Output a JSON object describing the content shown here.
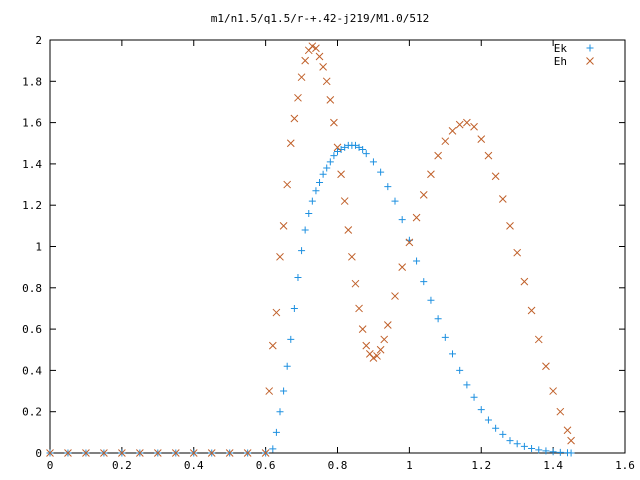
{
  "chart_data": {
    "type": "scatter",
    "title": "m1/n1.5/q1.5/r-+.42-j219/M1.0/512",
    "xlabel": "",
    "ylabel": "",
    "xlim": [
      0,
      1.6
    ],
    "ylim": [
      0,
      2
    ],
    "xticks": [
      "0",
      "0.2",
      "0.4",
      "0.6",
      "0.8",
      "1",
      "1.2",
      "1.4",
      "1.6"
    ],
    "yticks": [
      "0",
      "0.2",
      "0.4",
      "0.6",
      "0.8",
      "1",
      "1.2",
      "1.4",
      "1.6",
      "1.8",
      "2"
    ],
    "grid": false,
    "legend_position": "top-right",
    "series": [
      {
        "name": "Ek",
        "marker": "plus",
        "color": "#1e90e0",
        "points": [
          [
            0,
            0
          ],
          [
            0.05,
            0
          ],
          [
            0.1,
            0
          ],
          [
            0.15,
            0
          ],
          [
            0.2,
            0
          ],
          [
            0.25,
            0
          ],
          [
            0.3,
            0
          ],
          [
            0.35,
            0
          ],
          [
            0.4,
            0
          ],
          [
            0.45,
            0
          ],
          [
            0.5,
            0
          ],
          [
            0.55,
            0
          ],
          [
            0.6,
            0
          ],
          [
            0.62,
            0.02
          ],
          [
            0.63,
            0.1
          ],
          [
            0.64,
            0.2
          ],
          [
            0.65,
            0.3
          ],
          [
            0.66,
            0.42
          ],
          [
            0.67,
            0.55
          ],
          [
            0.68,
            0.7
          ],
          [
            0.69,
            0.85
          ],
          [
            0.7,
            0.98
          ],
          [
            0.71,
            1.08
          ],
          [
            0.72,
            1.16
          ],
          [
            0.73,
            1.22
          ],
          [
            0.74,
            1.27
          ],
          [
            0.75,
            1.31
          ],
          [
            0.76,
            1.35
          ],
          [
            0.77,
            1.38
          ],
          [
            0.78,
            1.41
          ],
          [
            0.79,
            1.44
          ],
          [
            0.8,
            1.46
          ],
          [
            0.81,
            1.47
          ],
          [
            0.82,
            1.48
          ],
          [
            0.83,
            1.49
          ],
          [
            0.84,
            1.49
          ],
          [
            0.85,
            1.49
          ],
          [
            0.86,
            1.48
          ],
          [
            0.87,
            1.47
          ],
          [
            0.88,
            1.45
          ],
          [
            0.9,
            1.41
          ],
          [
            0.92,
            1.36
          ],
          [
            0.94,
            1.29
          ],
          [
            0.96,
            1.22
          ],
          [
            0.98,
            1.13
          ],
          [
            1.0,
            1.03
          ],
          [
            1.02,
            0.93
          ],
          [
            1.04,
            0.83
          ],
          [
            1.06,
            0.74
          ],
          [
            1.08,
            0.65
          ],
          [
            1.1,
            0.56
          ],
          [
            1.12,
            0.48
          ],
          [
            1.14,
            0.4
          ],
          [
            1.16,
            0.33
          ],
          [
            1.18,
            0.27
          ],
          [
            1.2,
            0.21
          ],
          [
            1.22,
            0.16
          ],
          [
            1.24,
            0.12
          ],
          [
            1.26,
            0.09
          ],
          [
            1.28,
            0.06
          ],
          [
            1.3,
            0.045
          ],
          [
            1.32,
            0.032
          ],
          [
            1.34,
            0.022
          ],
          [
            1.36,
            0.015
          ],
          [
            1.38,
            0.01
          ],
          [
            1.4,
            0.006
          ],
          [
            1.42,
            0.003
          ],
          [
            1.44,
            0.001
          ],
          [
            1.45,
            0
          ]
        ]
      },
      {
        "name": "Eh",
        "marker": "cross",
        "color": "#c0602a",
        "points": [
          [
            0,
            0
          ],
          [
            0.05,
            0
          ],
          [
            0.1,
            0
          ],
          [
            0.15,
            0
          ],
          [
            0.2,
            0
          ],
          [
            0.25,
            0
          ],
          [
            0.3,
            0
          ],
          [
            0.35,
            0
          ],
          [
            0.4,
            0
          ],
          [
            0.45,
            0
          ],
          [
            0.5,
            0
          ],
          [
            0.55,
            0
          ],
          [
            0.6,
            0
          ],
          [
            0.61,
            0.3
          ],
          [
            0.62,
            0.52
          ],
          [
            0.63,
            0.68
          ],
          [
            0.64,
            0.95
          ],
          [
            0.65,
            1.1
          ],
          [
            0.66,
            1.3
          ],
          [
            0.67,
            1.5
          ],
          [
            0.68,
            1.62
          ],
          [
            0.69,
            1.72
          ],
          [
            0.7,
            1.82
          ],
          [
            0.71,
            1.9
          ],
          [
            0.72,
            1.95
          ],
          [
            0.73,
            1.97
          ],
          [
            0.74,
            1.96
          ],
          [
            0.75,
            1.92
          ],
          [
            0.76,
            1.87
          ],
          [
            0.77,
            1.8
          ],
          [
            0.78,
            1.71
          ],
          [
            0.79,
            1.6
          ],
          [
            0.8,
            1.48
          ],
          [
            0.81,
            1.35
          ],
          [
            0.82,
            1.22
          ],
          [
            0.83,
            1.08
          ],
          [
            0.84,
            0.95
          ],
          [
            0.85,
            0.82
          ],
          [
            0.86,
            0.7
          ],
          [
            0.87,
            0.6
          ],
          [
            0.88,
            0.52
          ],
          [
            0.89,
            0.48
          ],
          [
            0.9,
            0.46
          ],
          [
            0.91,
            0.47
          ],
          [
            0.92,
            0.5
          ],
          [
            0.93,
            0.55
          ],
          [
            0.94,
            0.62
          ],
          [
            0.96,
            0.76
          ],
          [
            0.98,
            0.9
          ],
          [
            1.0,
            1.02
          ],
          [
            1.02,
            1.14
          ],
          [
            1.04,
            1.25
          ],
          [
            1.06,
            1.35
          ],
          [
            1.08,
            1.44
          ],
          [
            1.1,
            1.51
          ],
          [
            1.12,
            1.56
          ],
          [
            1.14,
            1.59
          ],
          [
            1.16,
            1.6
          ],
          [
            1.18,
            1.58
          ],
          [
            1.2,
            1.52
          ],
          [
            1.22,
            1.44
          ],
          [
            1.24,
            1.34
          ],
          [
            1.26,
            1.23
          ],
          [
            1.28,
            1.1
          ],
          [
            1.3,
            0.97
          ],
          [
            1.32,
            0.83
          ],
          [
            1.34,
            0.69
          ],
          [
            1.36,
            0.55
          ],
          [
            1.38,
            0.42
          ],
          [
            1.4,
            0.3
          ],
          [
            1.42,
            0.2
          ],
          [
            1.44,
            0.11
          ],
          [
            1.45,
            0.06
          ]
        ]
      }
    ]
  }
}
